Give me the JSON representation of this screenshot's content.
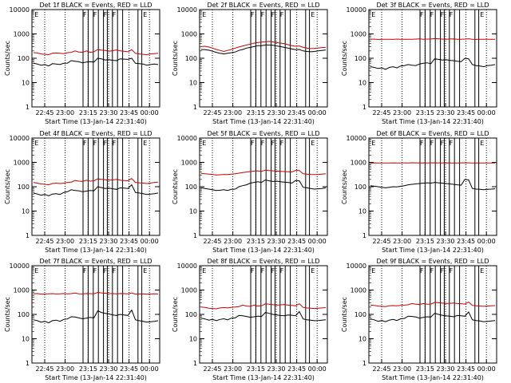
{
  "chart_data": [
    {
      "type": "line",
      "title": "Det 1f BLACK = Events, RED = LLD",
      "xlabel": "Start Time (13-Jan-14 22:31:40)",
      "ylabel": "Counts/sec",
      "x_ticks": [
        "22:45",
        "23:00",
        "23:15",
        "23:30",
        "23:45",
        "00:00"
      ],
      "y_ticks": [
        "1",
        "10",
        "100",
        "1000",
        "10000"
      ],
      "ylim": [
        1,
        10000
      ],
      "y_scale": "log",
      "series": [
        {
          "color": "#000000",
          "values": [
            62,
            58,
            52,
            55,
            48,
            60,
            58,
            55,
            62,
            63,
            80,
            75,
            72,
            65,
            70,
            72,
            70,
            100,
            95,
            85,
            88,
            82,
            80,
            95,
            92,
            90,
            100,
            62,
            60,
            58,
            52,
            55,
            58,
            55
          ]
        },
        {
          "color": "#cc0000",
          "values": [
            170,
            165,
            150,
            145,
            140,
            160,
            165,
            160,
            155,
            170,
            175,
            200,
            180,
            175,
            200,
            175,
            185,
            230,
            215,
            210,
            195,
            205,
            220,
            200,
            195,
            185,
            225,
            160,
            150,
            145,
            140,
            150,
            155,
            160
          ]
        }
      ],
      "flags": [
        "E",
        "F",
        "F",
        "F",
        "F",
        "E"
      ]
    },
    {
      "type": "line",
      "title": "Det 2f BLACK = Events, RED = LLD",
      "xlabel": "Start Time (13-Jan-14 22:31:40)",
      "ylabel": "Counts/sec",
      "x_ticks": [
        "22:45",
        "23:00",
        "23:15",
        "23:30",
        "23:45",
        "00:00"
      ],
      "y_ticks": [
        "1",
        "10",
        "100",
        "1000",
        "10000"
      ],
      "ylim": [
        1,
        10000
      ],
      "y_scale": "log",
      "series": [
        {
          "color": "#000000",
          "values": [
            230,
            225,
            215,
            195,
            175,
            160,
            150,
            160,
            170,
            180,
            210,
            230,
            260,
            280,
            300,
            330,
            330,
            350,
            350,
            340,
            320,
            300,
            280,
            260,
            240,
            225,
            230,
            200,
            190,
            185,
            190,
            200,
            210,
            220
          ]
        },
        {
          "color": "#cc0000",
          "values": [
            300,
            310,
            290,
            260,
            230,
            210,
            190,
            210,
            230,
            260,
            290,
            320,
            350,
            380,
            420,
            440,
            460,
            480,
            490,
            470,
            440,
            420,
            400,
            360,
            330,
            310,
            320,
            280,
            260,
            250,
            255,
            265,
            275,
            280
          ]
        }
      ],
      "flags": [
        "E",
        "F",
        "F",
        "F",
        "F",
        "E"
      ]
    },
    {
      "type": "line",
      "title": "Det 3f BLACK = Events, RED = LLD",
      "xlabel": "Start Time (13-Jan-14 22:31:40)",
      "ylabel": "Counts/sec",
      "x_ticks": [
        "22:45",
        "23:00",
        "23:15",
        "23:30",
        "23:45",
        "00:00"
      ],
      "y_ticks": [
        "1",
        "10",
        "100",
        "1000",
        "10000"
      ],
      "ylim": [
        1,
        10000
      ],
      "y_scale": "log",
      "series": [
        {
          "color": "#000000",
          "values": [
            45,
            42,
            38,
            40,
            35,
            42,
            45,
            40,
            48,
            50,
            55,
            52,
            50,
            58,
            62,
            65,
            60,
            95,
            90,
            85,
            88,
            82,
            80,
            75,
            72,
            100,
            95,
            55,
            50,
            48,
            45,
            50,
            52,
            55
          ]
        },
        {
          "color": "#cc0000",
          "values": [
            600,
            610,
            590,
            600,
            605,
            600,
            595,
            610,
            600,
            600,
            605,
            600,
            610,
            620,
            600,
            610,
            615,
            640,
            630,
            610,
            600,
            615,
            620,
            600,
            605,
            610,
            630,
            600,
            595,
            600,
            600,
            605,
            600,
            600
          ]
        }
      ],
      "flags": [
        "E",
        "F",
        "F",
        "F",
        "F",
        "E"
      ]
    },
    {
      "type": "line",
      "title": "Det 4f BLACK = Events, RED = LLD",
      "xlabel": "Start Time (13-Jan-14 22:31:40)",
      "ylabel": "Counts/sec",
      "x_ticks": [
        "22:45",
        "23:00",
        "23:15",
        "23:30",
        "23:45",
        "00:00"
      ],
      "y_ticks": [
        "1",
        "10",
        "100",
        "1000",
        "10000"
      ],
      "ylim": [
        1,
        10000
      ],
      "y_scale": "log",
      "series": [
        {
          "color": "#000000",
          "values": [
            55,
            50,
            45,
            48,
            42,
            50,
            52,
            48,
            58,
            62,
            75,
            70,
            68,
            62,
            66,
            70,
            68,
            100,
            92,
            85,
            88,
            82,
            78,
            90,
            88,
            85,
            120,
            58,
            55,
            52,
            48,
            50,
            52,
            55
          ]
        },
        {
          "color": "#cc0000",
          "values": [
            150,
            140,
            130,
            125,
            120,
            135,
            140,
            135,
            140,
            150,
            155,
            180,
            170,
            165,
            185,
            170,
            175,
            210,
            200,
            195,
            185,
            190,
            200,
            185,
            180,
            175,
            220,
            150,
            145,
            140,
            135,
            140,
            150,
            155
          ]
        }
      ],
      "flags": [
        "E",
        "F",
        "F",
        "F",
        "F",
        "E"
      ]
    },
    {
      "type": "line",
      "title": "Det 5f BLACK = Events, RED = LLD",
      "xlabel": "Start Time (13-Jan-14 22:31:40)",
      "ylabel": "Counts/sec",
      "x_ticks": [
        "22:45",
        "23:00",
        "23:15",
        "23:30",
        "23:45",
        "00:00"
      ],
      "y_ticks": [
        "1",
        "10",
        "100",
        "1000",
        "10000"
      ],
      "ylim": [
        1,
        10000
      ],
      "y_scale": "log",
      "series": [
        {
          "color": "#000000",
          "values": [
            90,
            85,
            80,
            75,
            70,
            72,
            75,
            70,
            78,
            80,
            100,
            110,
            120,
            140,
            150,
            160,
            150,
            190,
            175,
            165,
            170,
            160,
            155,
            150,
            140,
            180,
            175,
            95,
            90,
            85,
            80,
            82,
            85,
            90
          ]
        },
        {
          "color": "#cc0000",
          "values": [
            350,
            340,
            330,
            320,
            300,
            310,
            320,
            315,
            330,
            340,
            360,
            380,
            400,
            420,
            440,
            450,
            430,
            480,
            460,
            450,
            440,
            430,
            420,
            410,
            400,
            470,
            460,
            340,
            330,
            320,
            315,
            320,
            330,
            340
          ]
        }
      ],
      "flags": [
        "E",
        "F",
        "F",
        "F",
        "F",
        "E"
      ]
    },
    {
      "type": "line",
      "title": "Det 6f BLACK = Events, RED = LLD",
      "xlabel": "Start Time (13-Jan-14 22:31:40)",
      "ylabel": "Counts/sec",
      "x_ticks": [
        "22:45",
        "23:00",
        "23:15",
        "23:30",
        "23:45",
        "00:00"
      ],
      "y_ticks": [
        "1",
        "10",
        "100",
        "1000",
        "10000"
      ],
      "ylim": [
        1,
        10000
      ],
      "y_scale": "log",
      "series": [
        {
          "color": "#000000",
          "values": [
            110,
            105,
            100,
            95,
            90,
            95,
            100,
            98,
            105,
            110,
            120,
            125,
            130,
            135,
            140,
            145,
            140,
            150,
            145,
            140,
            135,
            130,
            125,
            120,
            115,
            200,
            190,
            85,
            80,
            78,
            75,
            78,
            80,
            82
          ]
        },
        {
          "color": "#cc0000",
          "values": [
            950,
            955,
            950,
            948,
            952,
            950,
            955,
            950,
            950,
            955,
            950,
            960,
            955,
            950,
            955,
            950,
            955,
            960,
            955,
            950,
            955,
            950,
            952,
            950,
            955,
            960,
            955,
            950,
            948,
            950,
            952,
            950,
            950,
            950
          ]
        }
      ],
      "flags": [
        "E",
        "F",
        "F",
        "F",
        "F",
        "E"
      ]
    },
    {
      "type": "line",
      "title": "Det 7f BLACK = Events, RED = LLD",
      "xlabel": "Start Time (13-Jan-14 22:31:40)",
      "ylabel": "Counts/sec",
      "x_ticks": [
        "22:45",
        "23:00",
        "23:15",
        "23:30",
        "23:45",
        "00:00"
      ],
      "y_ticks": [
        "1",
        "10",
        "100",
        "1000",
        "10000"
      ],
      "ylim": [
        1,
        10000
      ],
      "y_scale": "log",
      "series": [
        {
          "color": "#000000",
          "values": [
            60,
            55,
            48,
            52,
            45,
            55,
            58,
            52,
            62,
            65,
            80,
            78,
            72,
            66,
            70,
            75,
            72,
            140,
            120,
            110,
            105,
            95,
            90,
            100,
            95,
            90,
            150,
            60,
            55,
            52,
            48,
            50,
            52,
            55
          ]
        },
        {
          "color": "#cc0000",
          "values": [
            700,
            720,
            680,
            690,
            700,
            710,
            690,
            700,
            720,
            700,
            710,
            750,
            700,
            690,
            720,
            710,
            700,
            800,
            760,
            740,
            720,
            710,
            700,
            720,
            710,
            700,
            760,
            680,
            690,
            700,
            680,
            690,
            700,
            690
          ]
        }
      ],
      "flags": [
        "E",
        "F",
        "F",
        "F",
        "F",
        "E"
      ]
    },
    {
      "type": "line",
      "title": "Det 8f BLACK = Events, RED = LLD",
      "xlabel": "Start Time (13-Jan-14 22:31:40)",
      "ylabel": "Counts/sec",
      "x_ticks": [
        "22:45",
        "23:00",
        "23:15",
        "23:30",
        "23:45",
        "00:00"
      ],
      "y_ticks": [
        "1",
        "10",
        "100",
        "1000",
        "10000"
      ],
      "ylim": [
        1,
        10000
      ],
      "y_scale": "log",
      "series": [
        {
          "color": "#000000",
          "values": [
            70,
            65,
            58,
            62,
            55,
            62,
            66,
            60,
            70,
            72,
            90,
            88,
            82,
            76,
            80,
            85,
            82,
            120,
            110,
            100,
            95,
            90,
            88,
            95,
            92,
            88,
            130,
            65,
            60,
            58,
            55,
            56,
            58,
            60
          ]
        },
        {
          "color": "#cc0000",
          "values": [
            200,
            195,
            180,
            175,
            170,
            185,
            190,
            185,
            195,
            200,
            210,
            240,
            220,
            215,
            240,
            220,
            225,
            270,
            260,
            250,
            240,
            245,
            255,
            240,
            235,
            225,
            275,
            195,
            185,
            180,
            175,
            180,
            185,
            190
          ]
        }
      ],
      "flags": [
        "E",
        "F",
        "F",
        "F",
        "F",
        "E"
      ]
    },
    {
      "type": "line",
      "title": "Det 9f BLACK = Events, RED = LLD",
      "xlabel": "Start Time (13-Jan-14 22:31:40)",
      "ylabel": "Counts/sec",
      "x_ticks": [
        "22:45",
        "23:00",
        "23:15",
        "23:30",
        "23:45",
        "00:00"
      ],
      "y_ticks": [
        "1",
        "10",
        "100",
        "1000",
        "10000"
      ],
      "ylim": [
        1,
        10000
      ],
      "y_scale": "log",
      "series": [
        {
          "color": "#000000",
          "values": [
            65,
            60,
            52,
            56,
            50,
            58,
            62,
            56,
            66,
            68,
            85,
            82,
            78,
            70,
            75,
            80,
            78,
            110,
            100,
            92,
            88,
            84,
            80,
            90,
            88,
            84,
            125,
            60,
            56,
            54,
            50,
            52,
            54,
            56
          ]
        },
        {
          "color": "#cc0000",
          "values": [
            240,
            235,
            220,
            215,
            210,
            225,
            230,
            225,
            235,
            240,
            250,
            280,
            260,
            255,
            280,
            260,
            265,
            310,
            300,
            290,
            280,
            285,
            295,
            280,
            275,
            265,
            320,
            235,
            225,
            220,
            215,
            220,
            225,
            230
          ]
        }
      ],
      "flags": [
        "E",
        "F",
        "F",
        "F",
        "F",
        "E"
      ]
    }
  ]
}
